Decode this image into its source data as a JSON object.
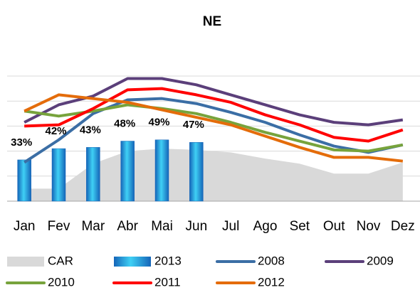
{
  "chart_data": {
    "type": "line",
    "title": "NE",
    "categories": [
      "Jan",
      "Fev",
      "Mar",
      "Abr",
      "Mai",
      "Jun",
      "Jul",
      "Ago",
      "Set",
      "Out",
      "Nov",
      "Dez"
    ],
    "ylim": [
      0,
      100
    ],
    "yticks": [
      0,
      20,
      40,
      60,
      80,
      100
    ],
    "grid": true,
    "series": [
      {
        "name": "CAR",
        "type": "area",
        "color": "#d9d9d9",
        "values": [
          10,
          10,
          30,
          40,
          42,
          41,
          39,
          34,
          30,
          22,
          22,
          31
        ]
      },
      {
        "name": "2013",
        "type": "bar",
        "color": "#1f9bdc",
        "values": [
          33,
          42,
          43,
          48,
          49,
          47,
          null,
          null,
          null,
          null,
          null,
          null
        ],
        "value_labels": [
          "33%",
          "42%",
          "43%",
          "48%",
          "49%",
          "47%",
          null,
          null,
          null,
          null,
          null,
          null
        ]
      },
      {
        "name": "2008",
        "type": "line",
        "color": "#3b6ea5",
        "values": [
          31,
          49,
          70,
          81,
          82,
          78,
          71,
          63,
          53,
          44,
          39,
          45
        ]
      },
      {
        "name": "2009",
        "type": "line",
        "color": "#5b3f7a",
        "values": [
          63,
          77,
          84,
          98,
          98,
          93,
          85,
          77,
          69,
          63,
          61,
          65
        ]
      },
      {
        "name": "2010",
        "type": "line",
        "color": "#77a33c",
        "values": [
          72,
          68,
          72,
          77,
          74,
          70,
          63,
          55,
          48,
          41,
          40,
          45
        ]
      },
      {
        "name": "2011",
        "type": "line",
        "color": "#ff0000",
        "values": [
          60,
          61,
          74,
          89,
          90,
          85,
          79,
          69,
          61,
          51,
          48,
          57
        ]
      },
      {
        "name": "2012",
        "type": "line",
        "color": "#e46c0a",
        "values": [
          72,
          85,
          82,
          79,
          73,
          67,
          61,
          52,
          43,
          35,
          35,
          32
        ]
      }
    ]
  }
}
